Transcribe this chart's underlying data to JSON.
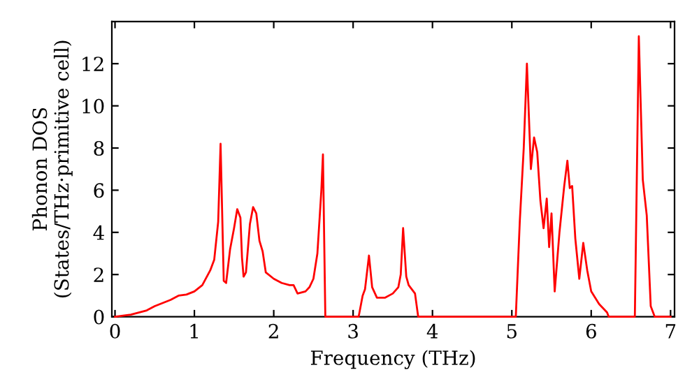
{
  "chart_data": {
    "type": "line",
    "xlabel": "Frequency (THz)",
    "ylabel": "Phonon DOS\n(States/THz·primitive cell)",
    "xlim": [
      -0.04,
      7.05
    ],
    "ylim": [
      0,
      14
    ],
    "xticks": [
      0,
      1,
      2,
      3,
      4,
      5,
      6,
      7
    ],
    "yticks": [
      0,
      2,
      4,
      6,
      8,
      10,
      12
    ],
    "grid": false,
    "legend": false,
    "series": [
      {
        "color": "#ff0000",
        "x": [
          0,
          0.2,
          0.4,
          0.5,
          0.6,
          0.7,
          0.8,
          0.9,
          1.0,
          1.1,
          1.2,
          1.25,
          1.3,
          1.33,
          1.37,
          1.4,
          1.45,
          1.5,
          1.54,
          1.58,
          1.6,
          1.62,
          1.65,
          1.7,
          1.74,
          1.78,
          1.82,
          1.86,
          1.9,
          2.0,
          2.1,
          2.2,
          2.25,
          2.3,
          2.4,
          2.45,
          2.5,
          2.55,
          2.6,
          2.62,
          2.65,
          3.0,
          3.07,
          3.12,
          3.15,
          3.2,
          3.24,
          3.3,
          3.4,
          3.5,
          3.57,
          3.6,
          3.63,
          3.67,
          3.7,
          3.78,
          3.82,
          5.0,
          5.05,
          5.1,
          5.15,
          5.19,
          5.24,
          5.28,
          5.32,
          5.36,
          5.4,
          5.44,
          5.47,
          5.5,
          5.54,
          5.6,
          5.66,
          5.7,
          5.73,
          5.76,
          5.8,
          5.85,
          5.9,
          5.95,
          6.0,
          6.1,
          6.2,
          6.22,
          6.55,
          6.6,
          6.65,
          6.7,
          6.75,
          6.8,
          7.0
        ],
        "values": [
          0,
          0.1,
          0.3,
          0.5,
          0.65,
          0.8,
          1.0,
          1.05,
          1.2,
          1.5,
          2.2,
          2.7,
          4.5,
          8.2,
          1.7,
          1.6,
          3.2,
          4.2,
          5.1,
          4.7,
          2.8,
          1.9,
          2.1,
          4.4,
          5.2,
          4.9,
          3.6,
          3.1,
          2.1,
          1.8,
          1.6,
          1.5,
          1.5,
          1.1,
          1.2,
          1.4,
          1.8,
          3.0,
          6.0,
          7.7,
          0,
          0,
          0,
          1.0,
          1.3,
          2.9,
          1.4,
          0.9,
          0.9,
          1.1,
          1.4,
          2.0,
          4.2,
          1.9,
          1.5,
          1.1,
          0,
          0,
          0,
          4.5,
          8.0,
          12.0,
          7.0,
          8.5,
          7.8,
          5.5,
          4.2,
          5.6,
          3.3,
          4.9,
          1.2,
          4.0,
          6.2,
          7.4,
          6.1,
          6.2,
          3.7,
          1.8,
          3.5,
          2.2,
          1.2,
          0.6,
          0.2,
          0,
          0,
          13.3,
          6.5,
          4.8,
          0.5,
          0,
          0
        ]
      }
    ]
  }
}
